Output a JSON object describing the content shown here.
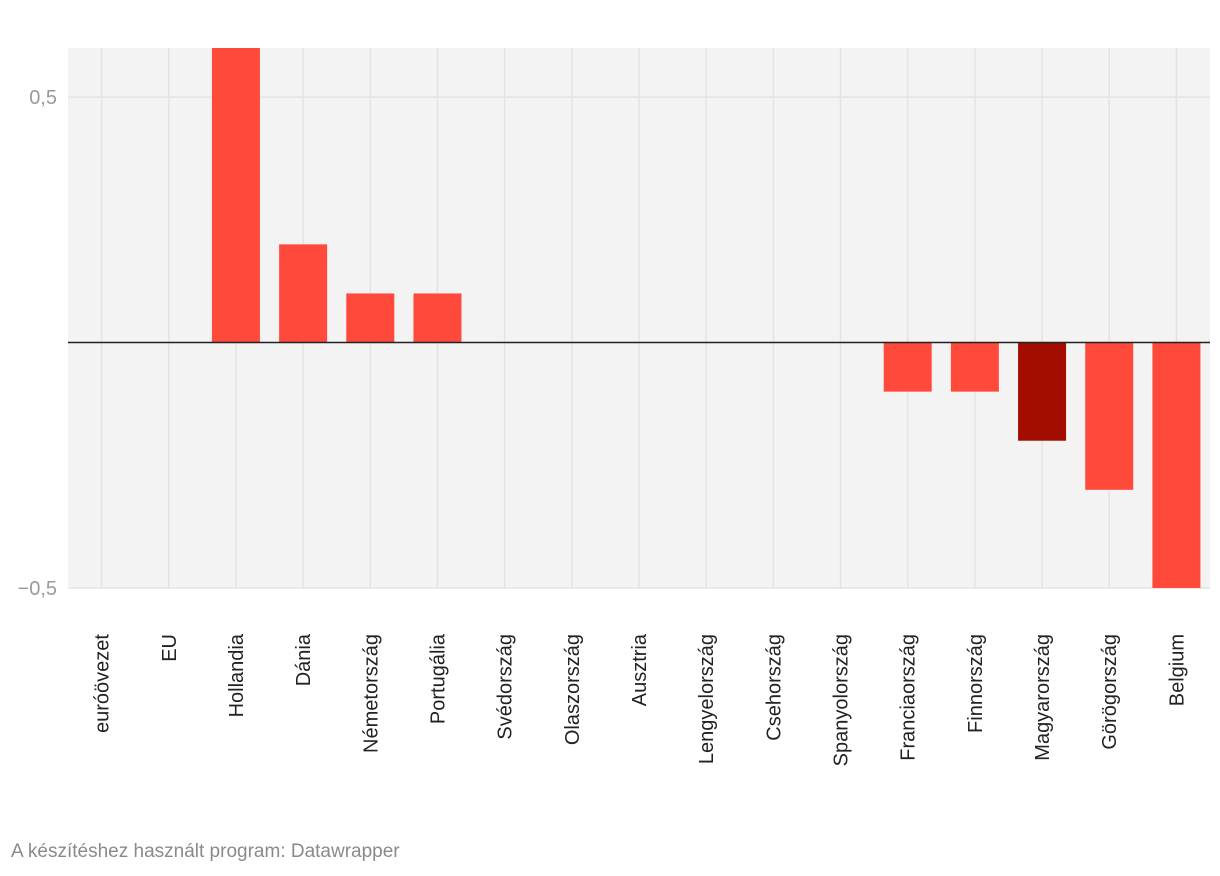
{
  "chart_data": {
    "type": "bar",
    "categories": [
      "euróövezet",
      "EU",
      "Hollandia",
      "Dánia",
      "Németország",
      "Portugália",
      "Svédország",
      "Olaszország",
      "Ausztria",
      "Lengyelország",
      "Csehország",
      "Spanyolország",
      "Franciaország",
      "Finnország",
      "Magyarország",
      "Görögország",
      "Belgium"
    ],
    "values": [
      0,
      0,
      0.6,
      0.2,
      0.1,
      0.1,
      0,
      0,
      0,
      0,
      0,
      0,
      -0.1,
      -0.1,
      -0.2,
      -0.3,
      -0.5
    ],
    "highlight": "Magyarország",
    "ylim": [
      -0.5,
      0.6
    ],
    "yticks": [
      {
        "value": 0.5,
        "label": "0,5"
      },
      {
        "value": -0.5,
        "label": "−0,5"
      }
    ],
    "grid": true,
    "colors": {
      "bar": "#ff4a3b",
      "highlight": "#a30d00",
      "background": "#f3f3f3",
      "grid": "#e3e3e3",
      "zero": "#222222"
    }
  },
  "footer": "A készítéshez használt program: Datawrapper"
}
